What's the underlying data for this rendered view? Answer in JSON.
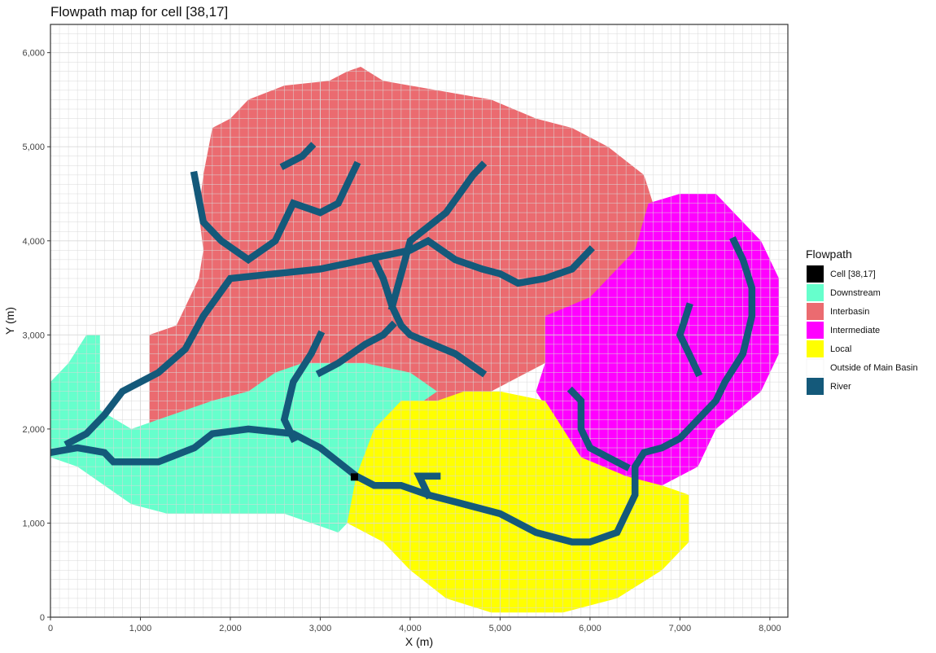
{
  "chart_data": {
    "type": "heatmap",
    "title": "Flowpath map for cell [38,17]",
    "xlabel": "X (m)",
    "ylabel": "Y (m)",
    "xlim": [
      0,
      8200
    ],
    "ylim": [
      0,
      6300
    ],
    "xticks": [
      0,
      1000,
      2000,
      3000,
      4000,
      5000,
      6000,
      7000,
      8000
    ],
    "xtick_labels": [
      "0",
      "1,000",
      "2,000",
      "3,000",
      "4,000",
      "5,000",
      "6,000",
      "7,000",
      "8,000"
    ],
    "yticks": [
      0,
      1000,
      2000,
      3000,
      4000,
      5000,
      6000
    ],
    "ytick_labels": [
      "0",
      "1,000",
      "2,000",
      "3,000",
      "4,000",
      "5,000",
      "6,000"
    ],
    "grid": true,
    "legend": {
      "title": "Flowpath",
      "position": "right",
      "entries": [
        {
          "label": "Cell [38,17]",
          "color": "#000000"
        },
        {
          "label": "Downstream",
          "color": "#66FFCC"
        },
        {
          "label": "Interbasin",
          "color": "#EB6B70"
        },
        {
          "label": "Intermediate",
          "color": "#FF00FF"
        },
        {
          "label": "Local",
          "color": "#FFFF00"
        },
        {
          "label": "Outside of Main Basin",
          "color": "#FFFFFF"
        },
        {
          "label": "River",
          "color": "#14597A"
        }
      ]
    },
    "regions": [
      {
        "class": "Interbasin",
        "color": "#EB6B70",
        "polygon": [
          [
            1100,
            1900
          ],
          [
            1100,
            3000
          ],
          [
            1400,
            3100
          ],
          [
            1500,
            3300
          ],
          [
            1650,
            3600
          ],
          [
            1700,
            3900
          ],
          [
            1650,
            4300
          ],
          [
            1700,
            4700
          ],
          [
            1800,
            5200
          ],
          [
            2000,
            5300
          ],
          [
            2200,
            5500
          ],
          [
            2600,
            5650
          ],
          [
            3100,
            5700
          ],
          [
            3300,
            5800
          ],
          [
            3450,
            5850
          ],
          [
            3700,
            5700
          ],
          [
            4300,
            5600
          ],
          [
            4900,
            5500
          ],
          [
            5400,
            5300
          ],
          [
            5800,
            5200
          ],
          [
            6200,
            5000
          ],
          [
            6600,
            4700
          ],
          [
            6700,
            4400
          ],
          [
            6600,
            3900
          ],
          [
            6500,
            3400
          ],
          [
            6000,
            3100
          ],
          [
            5500,
            2700
          ],
          [
            4900,
            2400
          ],
          [
            4300,
            2200
          ],
          [
            3800,
            2500
          ],
          [
            3400,
            2600
          ],
          [
            3000,
            2700
          ],
          [
            2600,
            2600
          ],
          [
            2200,
            2400
          ],
          [
            1800,
            2300
          ],
          [
            1400,
            2000
          ]
        ]
      },
      {
        "class": "Intermediate",
        "color": "#FF00FF",
        "polygon": [
          [
            5500,
            2700
          ],
          [
            5500,
            3200
          ],
          [
            6000,
            3400
          ],
          [
            6500,
            3900
          ],
          [
            6650,
            4400
          ],
          [
            7000,
            4500
          ],
          [
            7400,
            4500
          ],
          [
            7600,
            4300
          ],
          [
            7900,
            4000
          ],
          [
            8100,
            3600
          ],
          [
            8100,
            2800
          ],
          [
            7900,
            2400
          ],
          [
            7400,
            2000
          ],
          [
            7200,
            1600
          ],
          [
            6800,
            1400
          ],
          [
            6300,
            1500
          ],
          [
            5900,
            1700
          ],
          [
            5600,
            2100
          ],
          [
            5400,
            2400
          ]
        ]
      },
      {
        "class": "Downstream",
        "color": "#66FFCC",
        "polygon": [
          [
            0,
            1700
          ],
          [
            0,
            2500
          ],
          [
            200,
            2700
          ],
          [
            400,
            3000
          ],
          [
            550,
            3000
          ],
          [
            550,
            2200
          ],
          [
            900,
            2000
          ],
          [
            1200,
            2100
          ],
          [
            1500,
            2200
          ],
          [
            1800,
            2300
          ],
          [
            2200,
            2400
          ],
          [
            2500,
            2600
          ],
          [
            2800,
            2700
          ],
          [
            3200,
            2700
          ],
          [
            3500,
            2700
          ],
          [
            4000,
            2600
          ],
          [
            4300,
            2400
          ],
          [
            4000,
            2200
          ],
          [
            3700,
            2000
          ],
          [
            3500,
            1600
          ],
          [
            3400,
            1100
          ],
          [
            3200,
            900
          ],
          [
            2900,
            1000
          ],
          [
            2600,
            1100
          ],
          [
            2300,
            1100
          ],
          [
            2000,
            1100
          ],
          [
            1600,
            1100
          ],
          [
            1300,
            1100
          ],
          [
            900,
            1200
          ],
          [
            600,
            1400
          ],
          [
            300,
            1600
          ]
        ]
      },
      {
        "class": "Local",
        "color": "#FFFF00",
        "polygon": [
          [
            3300,
            1000
          ],
          [
            3400,
            1500
          ],
          [
            3600,
            2000
          ],
          [
            3900,
            2300
          ],
          [
            4300,
            2300
          ],
          [
            4600,
            2400
          ],
          [
            5000,
            2400
          ],
          [
            5500,
            2300
          ],
          [
            5700,
            2000
          ],
          [
            5900,
            1700
          ],
          [
            6400,
            1500
          ],
          [
            6800,
            1400
          ],
          [
            7100,
            1300
          ],
          [
            7100,
            800
          ],
          [
            6800,
            500
          ],
          [
            6300,
            200
          ],
          [
            5700,
            50
          ],
          [
            4900,
            50
          ],
          [
            4400,
            200
          ],
          [
            4000,
            500
          ],
          [
            3700,
            800
          ]
        ]
      }
    ],
    "river_paths": [
      [
        [
          0,
          1750
        ],
        [
          300,
          1800
        ],
        [
          600,
          1750
        ],
        [
          700,
          1650
        ],
        [
          1200,
          1650
        ],
        [
          1600,
          1800
        ],
        [
          1800,
          1950
        ],
        [
          2200,
          2000
        ],
        [
          2700,
          1950
        ],
        [
          3000,
          1800
        ],
        [
          3200,
          1650
        ],
        [
          3400,
          1500
        ]
      ],
      [
        [
          200,
          1850
        ],
        [
          400,
          1950
        ],
        [
          600,
          2150
        ],
        [
          800,
          2400
        ],
        [
          1200,
          2600
        ],
        [
          1500,
          2850
        ],
        [
          1700,
          3200
        ],
        [
          1850,
          3400
        ],
        [
          2000,
          3600
        ],
        [
          2500,
          3650
        ],
        [
          3000,
          3700
        ],
        [
          3500,
          3800
        ],
        [
          4000,
          3900
        ],
        [
          4200,
          4000
        ],
        [
          4500,
          3800
        ],
        [
          4800,
          3700
        ],
        [
          5000,
          3650
        ],
        [
          5200,
          3550
        ],
        [
          5500,
          3600
        ],
        [
          5800,
          3700
        ],
        [
          6000,
          3900
        ]
      ],
      [
        [
          1600,
          4700
        ],
        [
          1700,
          4200
        ],
        [
          1900,
          4000
        ],
        [
          2200,
          3800
        ],
        [
          2500,
          4000
        ],
        [
          2700,
          4400
        ],
        [
          3000,
          4300
        ],
        [
          3200,
          4400
        ],
        [
          3300,
          4600
        ],
        [
          3400,
          4800
        ]
      ],
      [
        [
          2600,
          4800
        ],
        [
          2800,
          4900
        ],
        [
          2900,
          5000
        ]
      ],
      [
        [
          3600,
          3800
        ],
        [
          3700,
          3600
        ],
        [
          3800,
          3300
        ],
        [
          3900,
          3100
        ],
        [
          4000,
          3000
        ],
        [
          4500,
          2800
        ],
        [
          4800,
          2600
        ]
      ],
      [
        [
          3800,
          3300
        ],
        [
          4000,
          4000
        ],
        [
          4400,
          4300
        ],
        [
          4700,
          4700
        ],
        [
          4800,
          4800
        ]
      ],
      [
        [
          3000,
          2600
        ],
        [
          3200,
          2700
        ],
        [
          3500,
          2900
        ],
        [
          3700,
          3000
        ],
        [
          3800,
          3100
        ]
      ],
      [
        [
          3000,
          3000
        ],
        [
          2900,
          2800
        ],
        [
          2700,
          2500
        ],
        [
          2600,
          2100
        ],
        [
          2700,
          1900
        ]
      ],
      [
        [
          3400,
          1500
        ],
        [
          3600,
          1400
        ],
        [
          3900,
          1400
        ],
        [
          4200,
          1300
        ],
        [
          4600,
          1200
        ],
        [
          5000,
          1100
        ],
        [
          5400,
          900
        ],
        [
          5800,
          800
        ],
        [
          6000,
          800
        ],
        [
          6300,
          900
        ],
        [
          6400,
          1100
        ],
        [
          6500,
          1300
        ],
        [
          6500,
          1600
        ],
        [
          6600,
          1750
        ],
        [
          6800,
          1800
        ],
        [
          7000,
          1900
        ],
        [
          7200,
          2100
        ],
        [
          7400,
          2300
        ],
        [
          7500,
          2500
        ],
        [
          7700,
          2800
        ],
        [
          7800,
          3200
        ],
        [
          7800,
          3500
        ],
        [
          7700,
          3800
        ],
        [
          7600,
          4000
        ]
      ],
      [
        [
          6400,
          1600
        ],
        [
          6200,
          1700
        ],
        [
          6000,
          1800
        ],
        [
          5900,
          2000
        ],
        [
          5900,
          2300
        ],
        [
          5800,
          2400
        ]
      ],
      [
        [
          7100,
          3300
        ],
        [
          7000,
          3000
        ],
        [
          7100,
          2800
        ],
        [
          7200,
          2600
        ]
      ],
      [
        [
          4200,
          1300
        ],
        [
          4100,
          1500
        ],
        [
          4300,
          1500
        ]
      ]
    ],
    "cell": {
      "label": "Cell [38,17]",
      "x": 3380,
      "y": 1490,
      "color": "#000000"
    }
  }
}
